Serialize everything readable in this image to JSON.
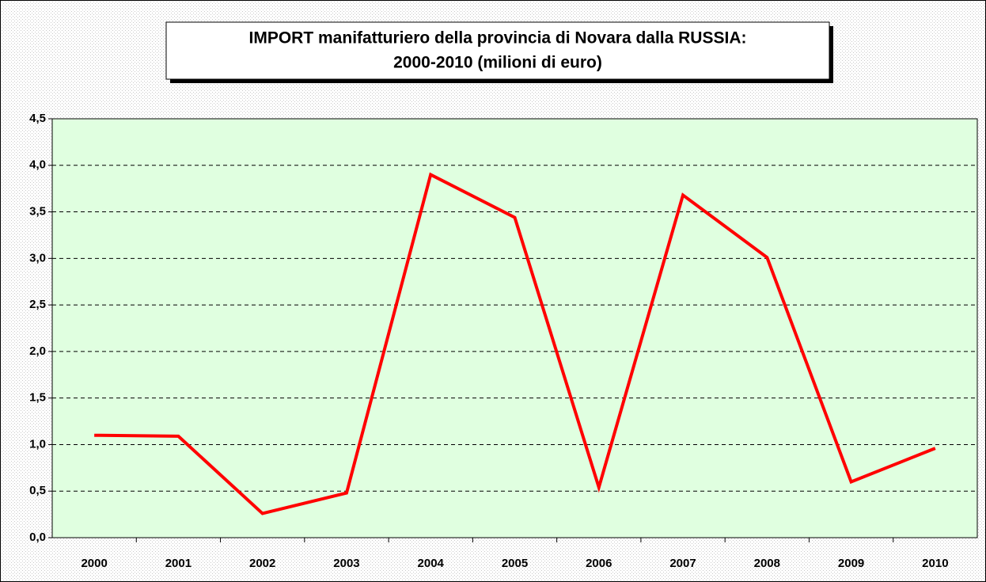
{
  "chart_data": {
    "type": "line",
    "title": [
      "IMPORT manifatturiero della provincia di Novara dalla RUSSIA:",
      "2000-2010 (milioni di euro)"
    ],
    "categories": [
      "2000",
      "2001",
      "2002",
      "2003",
      "2004",
      "2005",
      "2006",
      "2007",
      "2008",
      "2009",
      "2010"
    ],
    "values": [
      1.1,
      1.09,
      0.26,
      0.48,
      3.9,
      3.44,
      0.54,
      3.68,
      3.01,
      0.6,
      0.96
    ],
    "color": "#ff0000",
    "plot_background": "#e0ffe0",
    "ylim": [
      0,
      4.5
    ],
    "yticks": [
      {
        "value": 0,
        "label": "0,0"
      },
      {
        "value": 0.5,
        "label": "0,5"
      },
      {
        "value": 1,
        "label": "1,0"
      },
      {
        "value": 1.5,
        "label": "1,5"
      },
      {
        "value": 2,
        "label": "2,0"
      },
      {
        "value": 2.5,
        "label": "2,5"
      },
      {
        "value": 3,
        "label": "3,0"
      },
      {
        "value": 3.5,
        "label": "3,5"
      },
      {
        "value": 4,
        "label": "4,0"
      },
      {
        "value": 4.5,
        "label": "4,5"
      }
    ],
    "grid": true
  }
}
